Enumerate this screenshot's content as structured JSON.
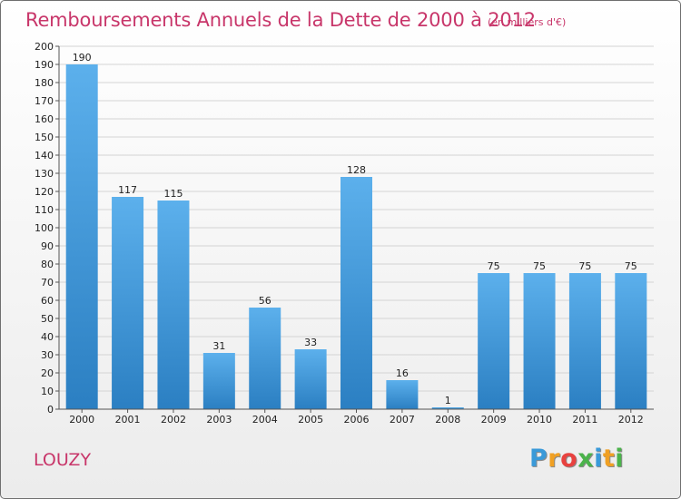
{
  "chart_data": {
    "type": "bar",
    "title": "Remboursements Annuels de la Dette de 2000 à 2012",
    "subtitle": "(en milliers d'€)",
    "categories": [
      "2000",
      "2001",
      "2002",
      "2003",
      "2004",
      "2005",
      "2006",
      "2007",
      "2008",
      "2009",
      "2010",
      "2011",
      "2012"
    ],
    "values": [
      190,
      117,
      115,
      31,
      56,
      33,
      128,
      16,
      1,
      75,
      75,
      75,
      75
    ],
    "ylim": [
      0,
      200
    ],
    "ystep": 10,
    "xlabel": "",
    "ylabel": "",
    "grid": true,
    "bar_color": "#4ea3e2"
  },
  "commune": "LOUZY",
  "logo": {
    "letters": [
      "P",
      "r",
      "o",
      "x",
      "i",
      "t",
      "i"
    ],
    "colors": [
      "#3a9ad9",
      "#f0a023",
      "#e8423f",
      "#4bb34b",
      "#3a9ad9",
      "#f0a023",
      "#4bb34b"
    ]
  }
}
